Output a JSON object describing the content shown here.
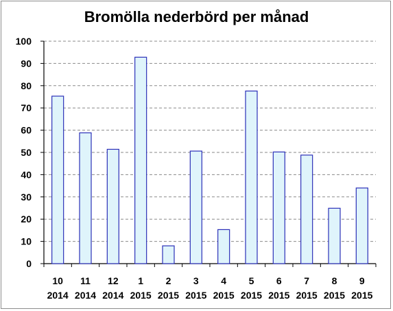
{
  "chart_data": {
    "type": "bar",
    "title": "Bromölla nederbörd per månad",
    "xlabel": "",
    "ylabel": "",
    "ylim": [
      0,
      100
    ],
    "yticks": [
      0,
      10,
      20,
      30,
      40,
      50,
      60,
      70,
      80,
      90,
      100
    ],
    "grid": true,
    "categories": [
      {
        "month": "10",
        "year": "2014"
      },
      {
        "month": "11",
        "year": "2014"
      },
      {
        "month": "12",
        "year": "2014"
      },
      {
        "month": "1",
        "year": "2015"
      },
      {
        "month": "2",
        "year": "2015"
      },
      {
        "month": "3",
        "year": "2015"
      },
      {
        "month": "4",
        "year": "2015"
      },
      {
        "month": "5",
        "year": "2015"
      },
      {
        "month": "6",
        "year": "2015"
      },
      {
        "month": "7",
        "year": "2015"
      },
      {
        "month": "8",
        "year": "2015"
      },
      {
        "month": "9",
        "year": "2015"
      }
    ],
    "values": [
      75.3,
      58.8,
      51.4,
      92.8,
      8.0,
      50.6,
      15.3,
      77.6,
      50.2,
      48.8,
      24.9,
      34.0
    ],
    "colors": {
      "bar_fill": "#dff4fb",
      "bar_stroke": "#2b2fb8",
      "grid": "#8a8a8a",
      "axis": "#000000"
    }
  }
}
